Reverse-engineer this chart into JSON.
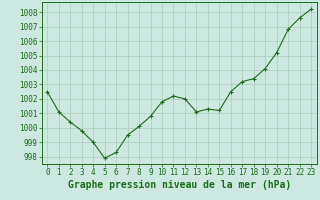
{
  "x": [
    0,
    1,
    2,
    3,
    4,
    5,
    6,
    7,
    8,
    9,
    10,
    11,
    12,
    13,
    14,
    15,
    16,
    17,
    18,
    19,
    20,
    21,
    22,
    23
  ],
  "y": [
    1002.5,
    1001.1,
    1000.4,
    999.8,
    999.0,
    997.9,
    998.3,
    999.5,
    1000.1,
    1000.8,
    1001.8,
    1002.2,
    1002.0,
    1001.1,
    1001.3,
    1001.2,
    1002.5,
    1003.2,
    1003.4,
    1004.1,
    1005.2,
    1006.8,
    1007.6,
    1008.2
  ],
  "line_color": "#1a6e1a",
  "marker_color": "#1a6e1a",
  "bg_color": "#cce8e0",
  "grid_color": "#aaccbb",
  "title": "Graphe pression niveau de la mer (hPa)",
  "xlim": [
    -0.5,
    23.5
  ],
  "ylim": [
    997.5,
    1008.7
  ],
  "yticks": [
    998,
    999,
    1000,
    1001,
    1002,
    1003,
    1004,
    1005,
    1006,
    1007,
    1008
  ],
  "xticks": [
    0,
    1,
    2,
    3,
    4,
    5,
    6,
    7,
    8,
    9,
    10,
    11,
    12,
    13,
    14,
    15,
    16,
    17,
    18,
    19,
    20,
    21,
    22,
    23
  ],
  "title_fontsize": 7,
  "tick_fontsize": 5.5,
  "title_color": "#1a6e1a",
  "tick_color": "#1a6e1a",
  "axis_color": "#1a6e1a",
  "spine_color": "#1a6e1a"
}
